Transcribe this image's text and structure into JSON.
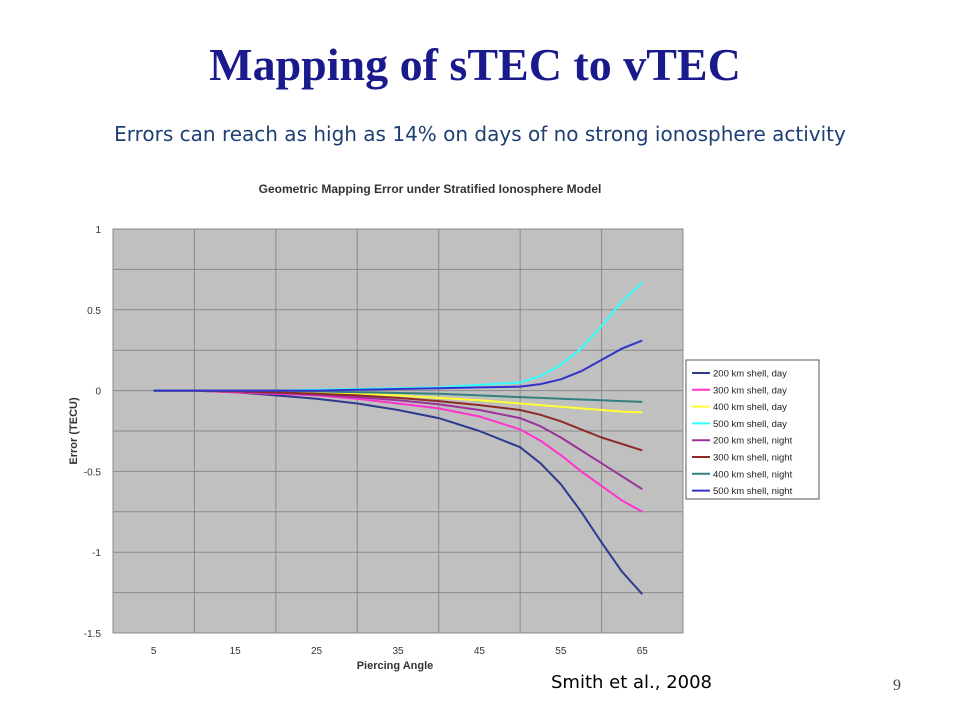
{
  "slide": {
    "title": "Mapping of sTEC to vTEC",
    "subtitle": "Errors can reach as high as 14% on days of no strong ionosphere activity",
    "citation": "Smith et al., 2008",
    "page_number": "9"
  },
  "chart_data": {
    "type": "line",
    "title": "Geometric Mapping Error under Stratified Ionosphere Model",
    "xlabel": "Piercing Angle",
    "ylabel": "Error (TECU)",
    "x_ticks": [
      5,
      15,
      25,
      35,
      45,
      55,
      65
    ],
    "y_ticks": [
      1,
      0.5,
      0,
      -0.5,
      -1,
      -1.5
    ],
    "xlim": [
      0,
      70
    ],
    "ylim": [
      -1.5,
      1
    ],
    "grid": true,
    "legend_position": "right",
    "plot_background": "#c0c0c0",
    "x": [
      5,
      10,
      15,
      20,
      25,
      30,
      35,
      40,
      45,
      50,
      52.5,
      55,
      57.5,
      60,
      62.5,
      65
    ],
    "series": [
      {
        "name": "200 km shell, day",
        "color": "#2e3a8c",
        "values": [
          0,
          0,
          -0.01,
          -0.03,
          -0.05,
          -0.08,
          -0.12,
          -0.17,
          -0.25,
          -0.35,
          -0.45,
          -0.58,
          -0.75,
          -0.94,
          -1.12,
          -1.26
        ]
      },
      {
        "name": "300 km shell, day",
        "color": "#ff33cc",
        "values": [
          0,
          0,
          -0.01,
          -0.02,
          -0.03,
          -0.05,
          -0.08,
          -0.11,
          -0.16,
          -0.24,
          -0.31,
          -0.4,
          -0.5,
          -0.59,
          -0.68,
          -0.75
        ]
      },
      {
        "name": "400 km shell, day",
        "color": "#ffff33",
        "values": [
          0,
          0,
          0,
          -0.005,
          -0.01,
          -0.02,
          -0.03,
          -0.045,
          -0.06,
          -0.08,
          -0.09,
          -0.1,
          -0.11,
          -0.12,
          -0.13,
          -0.135
        ]
      },
      {
        "name": "500 km shell, day",
        "color": "#33ffff",
        "values": [
          0,
          0,
          0,
          0,
          0.005,
          0.01,
          0.015,
          0.02,
          0.035,
          0.05,
          0.09,
          0.16,
          0.26,
          0.4,
          0.55,
          0.67
        ]
      },
      {
        "name": "200 km shell, night",
        "color": "#993399",
        "values": [
          0,
          0,
          -0.005,
          -0.015,
          -0.025,
          -0.04,
          -0.06,
          -0.085,
          -0.12,
          -0.17,
          -0.22,
          -0.29,
          -0.37,
          -0.45,
          -0.53,
          -0.61
        ]
      },
      {
        "name": "300 km shell, night",
        "color": "#8c2a2a",
        "values": [
          0,
          0,
          -0.005,
          -0.01,
          -0.02,
          -0.03,
          -0.045,
          -0.065,
          -0.09,
          -0.12,
          -0.15,
          -0.19,
          -0.24,
          -0.29,
          -0.33,
          -0.37
        ]
      },
      {
        "name": "400 km shell, night",
        "color": "#338080",
        "values": [
          0,
          0,
          0,
          0,
          -0.005,
          -0.01,
          -0.015,
          -0.02,
          -0.03,
          -0.04,
          -0.045,
          -0.05,
          -0.055,
          -0.06,
          -0.065,
          -0.07
        ]
      },
      {
        "name": "500 km shell, night",
        "color": "#3333cc",
        "values": [
          0,
          0,
          0,
          0,
          0,
          0.005,
          0.01,
          0.015,
          0.02,
          0.025,
          0.04,
          0.07,
          0.12,
          0.19,
          0.26,
          0.31
        ]
      }
    ]
  }
}
